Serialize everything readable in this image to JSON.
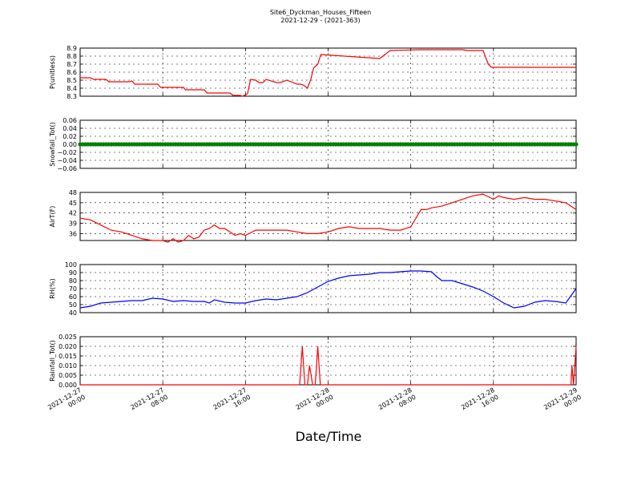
{
  "figure": {
    "title": "Site6_Dyckman_Houses_Fifteen",
    "subtitle": "2021-12-29 - (2021-363)",
    "xlabel": "Date/Time",
    "x_ticks": [
      "2021-12-27\n00:00",
      "2021-12-27\n08:00",
      "2021-12-27\n16:00",
      "2021-12-28\n00:00",
      "2021-12-28\n08:00",
      "2021-12-28\n16:00",
      "2021-12-29\n00:00"
    ]
  },
  "chart_data": [
    {
      "type": "line",
      "ylabel": "P(unitless)",
      "ylim": [
        8.3,
        8.9
      ],
      "yticks": [
        "8.3",
        "8.4",
        "8.5",
        "8.6",
        "8.7",
        "8.8",
        "8.9"
      ],
      "xlim_hours": [
        0,
        48
      ],
      "grid": true,
      "color": "#ff0000",
      "series": [
        {
          "x": [
            0,
            1,
            1.3,
            2.5,
            2.8,
            4.5,
            4.8,
            5,
            5.3,
            7.5,
            7.8,
            10,
            10.2,
            12,
            12.3,
            14.5,
            14.8,
            15.5,
            15.7,
            16.2,
            16.5,
            17,
            17.3,
            17.7,
            18,
            19,
            19.3,
            19.6,
            20,
            21,
            21.3,
            21.6,
            22,
            22.3,
            22.6,
            23,
            23.3,
            29,
            30,
            33,
            36,
            37,
            37.5,
            37.7,
            38,
            39,
            39.5,
            39.8,
            42,
            48
          ],
          "y": [
            8.53,
            8.53,
            8.51,
            8.51,
            8.48,
            8.48,
            8.48,
            8.49,
            8.45,
            8.45,
            8.41,
            8.41,
            8.38,
            8.38,
            8.34,
            8.34,
            8.31,
            8.31,
            8.3,
            8.33,
            8.51,
            8.5,
            8.47,
            8.47,
            8.51,
            8.47,
            8.47,
            8.48,
            8.5,
            8.45,
            8.45,
            8.44,
            8.4,
            8.5,
            8.65,
            8.7,
            8.82,
            8.77,
            8.87,
            8.88,
            8.88,
            8.88,
            8.87,
            8.87,
            8.87,
            8.87,
            8.7,
            8.66,
            8.66,
            8.66
          ]
        }
      ]
    },
    {
      "type": "scatter",
      "ylabel": "Snowfall_Tot()",
      "ylim": [
        -0.06,
        0.06
      ],
      "yticks": [
        "−0.06",
        "−0.04",
        "−0.02",
        "0.00",
        "0.02",
        "0.04",
        "0.06"
      ],
      "xlim_hours": [
        0,
        48
      ],
      "grid": true,
      "color": "#008000",
      "series": [
        {
          "x_range": [
            0,
            48
          ],
          "value": 0.0
        }
      ]
    },
    {
      "type": "line",
      "ylabel": "AirT(F)",
      "ylim": [
        34,
        48
      ],
      "yticks": [
        "36",
        "39",
        "42",
        "45",
        "48"
      ],
      "xlim_hours": [
        0,
        48
      ],
      "grid": true,
      "color": "#ff0000",
      "series": [
        {
          "x": [
            0,
            1,
            2,
            3,
            4,
            5,
            6,
            7,
            8,
            8.5,
            9,
            9.5,
            10,
            10.5,
            11,
            11.5,
            12,
            12.5,
            13,
            13.5,
            14,
            15,
            15.5,
            16,
            17,
            18,
            19,
            20,
            21,
            22,
            23,
            24,
            25,
            26,
            27,
            28,
            29,
            30,
            31,
            32,
            32.5,
            33,
            33.5,
            34,
            35,
            36,
            37,
            38,
            39,
            40,
            40.5,
            41,
            42,
            43,
            44,
            45,
            46,
            47,
            48
          ],
          "y": [
            40.5,
            40,
            38.5,
            37,
            36.5,
            35.5,
            34.5,
            34,
            34,
            33.5,
            34.5,
            33.5,
            34,
            35.5,
            34.5,
            35,
            37,
            37.5,
            38.5,
            37.5,
            37.5,
            35.5,
            36,
            35.5,
            37,
            37,
            37,
            37,
            36.5,
            36,
            36,
            36.5,
            37.5,
            38,
            37.5,
            37.5,
            37.5,
            37,
            37,
            38,
            40.5,
            43,
            43,
            43.5,
            44,
            45,
            46,
            47,
            47.5,
            46,
            47,
            46.5,
            46,
            46.5,
            46,
            46,
            45.5,
            45,
            43
          ]
        }
      ]
    },
    {
      "type": "line",
      "ylabel": "RH(%)",
      "ylim": [
        40,
        100
      ],
      "yticks": [
        "40",
        "50",
        "60",
        "70",
        "80",
        "90",
        "100"
      ],
      "xlim_hours": [
        0,
        48
      ],
      "grid": true,
      "color": "#0000ff",
      "series": [
        {
          "x": [
            0,
            1,
            2,
            3,
            4,
            5,
            6,
            7,
            8,
            9,
            10,
            11,
            12,
            12.5,
            13,
            14,
            15,
            16,
            17,
            18,
            19,
            20,
            21,
            22,
            23,
            24,
            25,
            26,
            27,
            28,
            29,
            30,
            31,
            32,
            33,
            34,
            34.5,
            35,
            36,
            37,
            38,
            39,
            40,
            41,
            42,
            43,
            44,
            45,
            46,
            47,
            48
          ],
          "y": [
            46,
            48,
            52,
            53,
            54,
            55,
            55,
            58,
            57,
            54,
            55,
            54,
            54,
            52,
            56,
            53,
            52,
            52,
            55,
            57,
            56,
            58,
            60,
            65,
            72,
            79,
            83,
            86,
            87,
            88,
            90,
            90,
            91,
            92,
            92,
            91,
            85,
            80,
            80,
            76,
            72,
            67,
            60,
            52,
            46,
            48,
            53,
            55,
            54,
            52,
            70
          ]
        }
      ]
    },
    {
      "type": "line",
      "ylabel": "Rainfall_Tot()",
      "ylim": [
        0,
        0.025
      ],
      "yticks": [
        "0.000",
        "0.005",
        "0.010",
        "0.015",
        "0.020",
        "0.025"
      ],
      "xlim_hours": [
        0,
        48
      ],
      "grid": true,
      "color": "#ff0000",
      "series": [
        {
          "x": [
            0,
            21.25,
            21.5,
            21.75,
            22,
            22.2,
            22.5,
            22.75,
            23,
            23.25,
            47.5,
            47.6,
            47.75,
            48
          ],
          "y": [
            0,
            0,
            0.02,
            0,
            0,
            0.01,
            0,
            0,
            0.02,
            0,
            0,
            0.01,
            0,
            0.02
          ]
        }
      ]
    }
  ]
}
